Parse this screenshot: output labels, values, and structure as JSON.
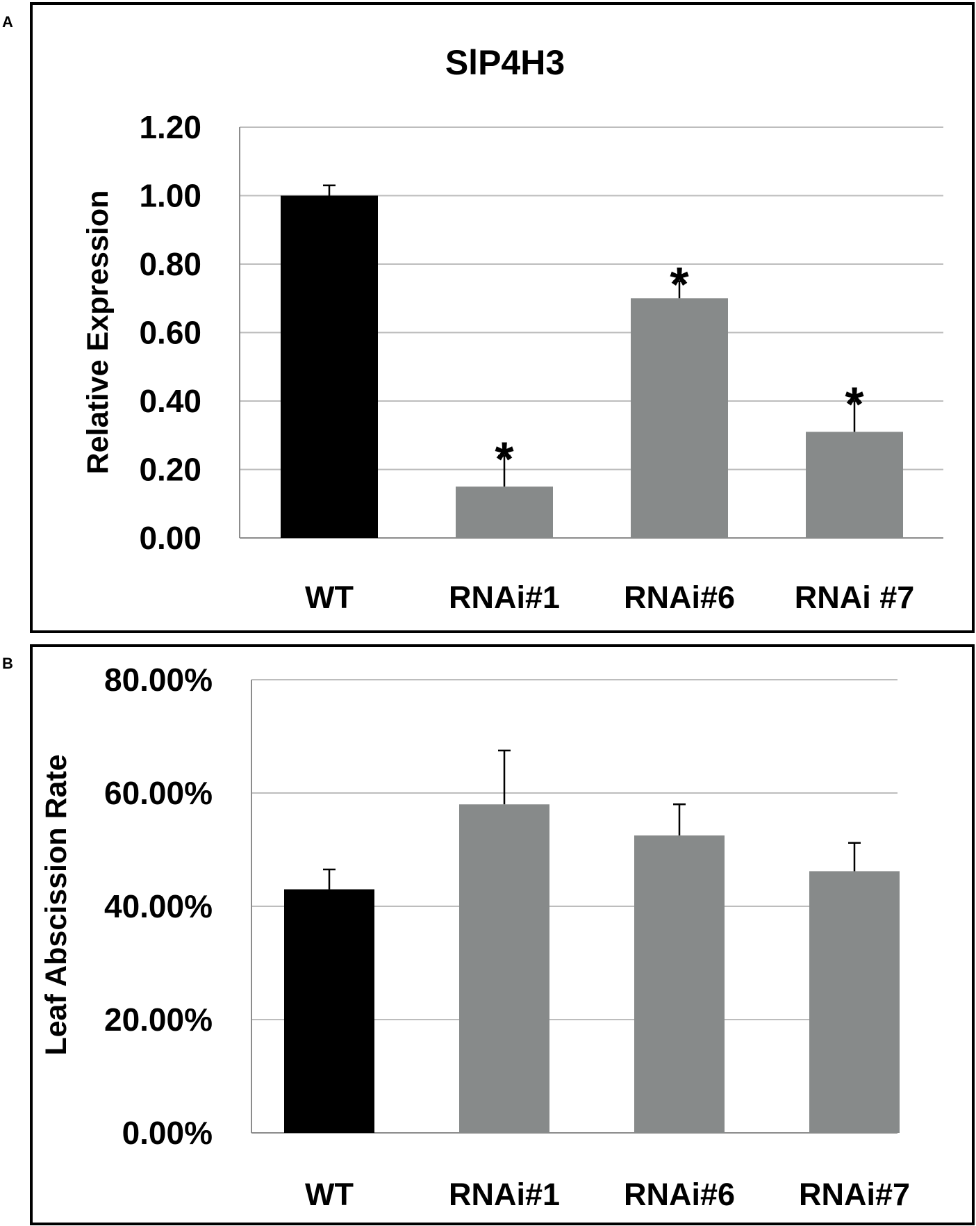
{
  "panels": [
    {
      "label": "A",
      "chart_data": {
        "type": "bar",
        "title": "SlP4H3",
        "xlabel": "",
        "ylabel": "Relative Expression",
        "categories": [
          "WT",
          "RNAi#1",
          "RNAi#6",
          "RNAi #7"
        ],
        "values": [
          1.0,
          0.15,
          0.7,
          0.31
        ],
        "errors": [
          0.03,
          0.09,
          0.05,
          0.09
        ],
        "significance": [
          "",
          "*",
          "*",
          "*"
        ],
        "bar_colors": [
          "#000000",
          "#878a8a",
          "#878a8a",
          "#878a8a"
        ],
        "ylim": [
          0,
          1.2
        ],
        "yticks": [
          0,
          0.2,
          0.4,
          0.6,
          0.8,
          1.0,
          1.2
        ],
        "ytick_labels": [
          "0.00",
          "0.20",
          "0.40",
          "0.60",
          "0.80",
          "1.00",
          "1.20"
        ],
        "grid": true
      }
    },
    {
      "label": "B",
      "chart_data": {
        "type": "bar",
        "title": "",
        "xlabel": "",
        "ylabel": "Leaf Abscission Rate",
        "categories": [
          "WT",
          "RNAi#1",
          "RNAi#6",
          "RNAi#7"
        ],
        "values": [
          0.43,
          0.58,
          0.525,
          0.462
        ],
        "errors": [
          0.035,
          0.095,
          0.055,
          0.05
        ],
        "significance": [
          "",
          "",
          "",
          ""
        ],
        "bar_colors": [
          "#000000",
          "#878a8a",
          "#878a8a",
          "#878a8a"
        ],
        "ylim": [
          0,
          0.8
        ],
        "yticks": [
          0,
          0.2,
          0.4,
          0.6,
          0.8
        ],
        "ytick_labels": [
          "0.00%",
          "20.00%",
          "40.00%",
          "60.00%",
          "80.00%"
        ],
        "grid": true
      }
    }
  ],
  "colors": {
    "frame": "#000000",
    "grid": "#bdbdbd",
    "axis": "#8c8c8c",
    "text": "#000000"
  }
}
